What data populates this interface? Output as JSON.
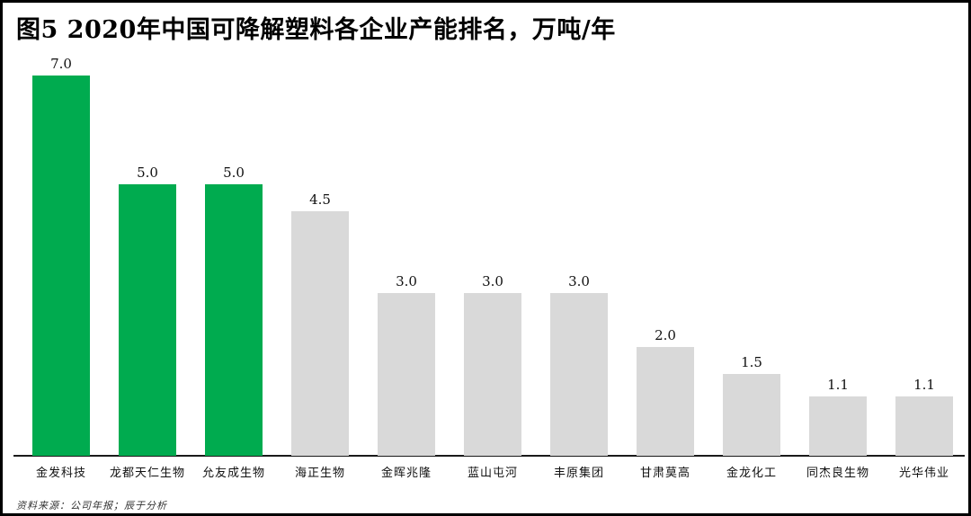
{
  "title": "图5 2020年中国可降解塑料各企业产能排名，万吨/年",
  "footer": "资料来源：公司年报；辰于分析",
  "chart_data": {
    "type": "bar",
    "title": "图5 2020年中国可降解塑料各企业产能排名，万吨/年",
    "unit_label": "万吨/年",
    "categories": [
      "金发科技",
      "龙都天仁生物",
      "允友成生物",
      "海正生物",
      "金晖兆隆",
      "蓝山屯河",
      "丰原集团",
      "甘肃莫高",
      "金龙化工",
      "同杰良生物",
      "光华伟业"
    ],
    "values": [
      7.0,
      5.0,
      5.0,
      4.5,
      3.0,
      3.0,
      3.0,
      2.0,
      1.5,
      1.1,
      1.1
    ],
    "value_labels": [
      "7.0",
      "5.0",
      "5.0",
      "4.5",
      "3.0",
      "3.0",
      "3.0",
      "2.0",
      "1.5",
      "1.1",
      "1.1"
    ],
    "bar_colors": [
      "#00AB4F",
      "#00AB4F",
      "#00AB4F",
      "#D9D9D9",
      "#D9D9D9",
      "#D9D9D9",
      "#D9D9D9",
      "#D9D9D9",
      "#D9D9D9",
      "#D9D9D9",
      "#D9D9D9"
    ],
    "highlight_color": "#00AB4F",
    "default_color": "#D9D9D9",
    "xlabel": "",
    "ylabel": "",
    "ylim": [
      0,
      7.5
    ],
    "grid": false,
    "legend": "none",
    "value_labels_shown": true
  },
  "source_note": "资料来源：公司年报；辰于分析"
}
